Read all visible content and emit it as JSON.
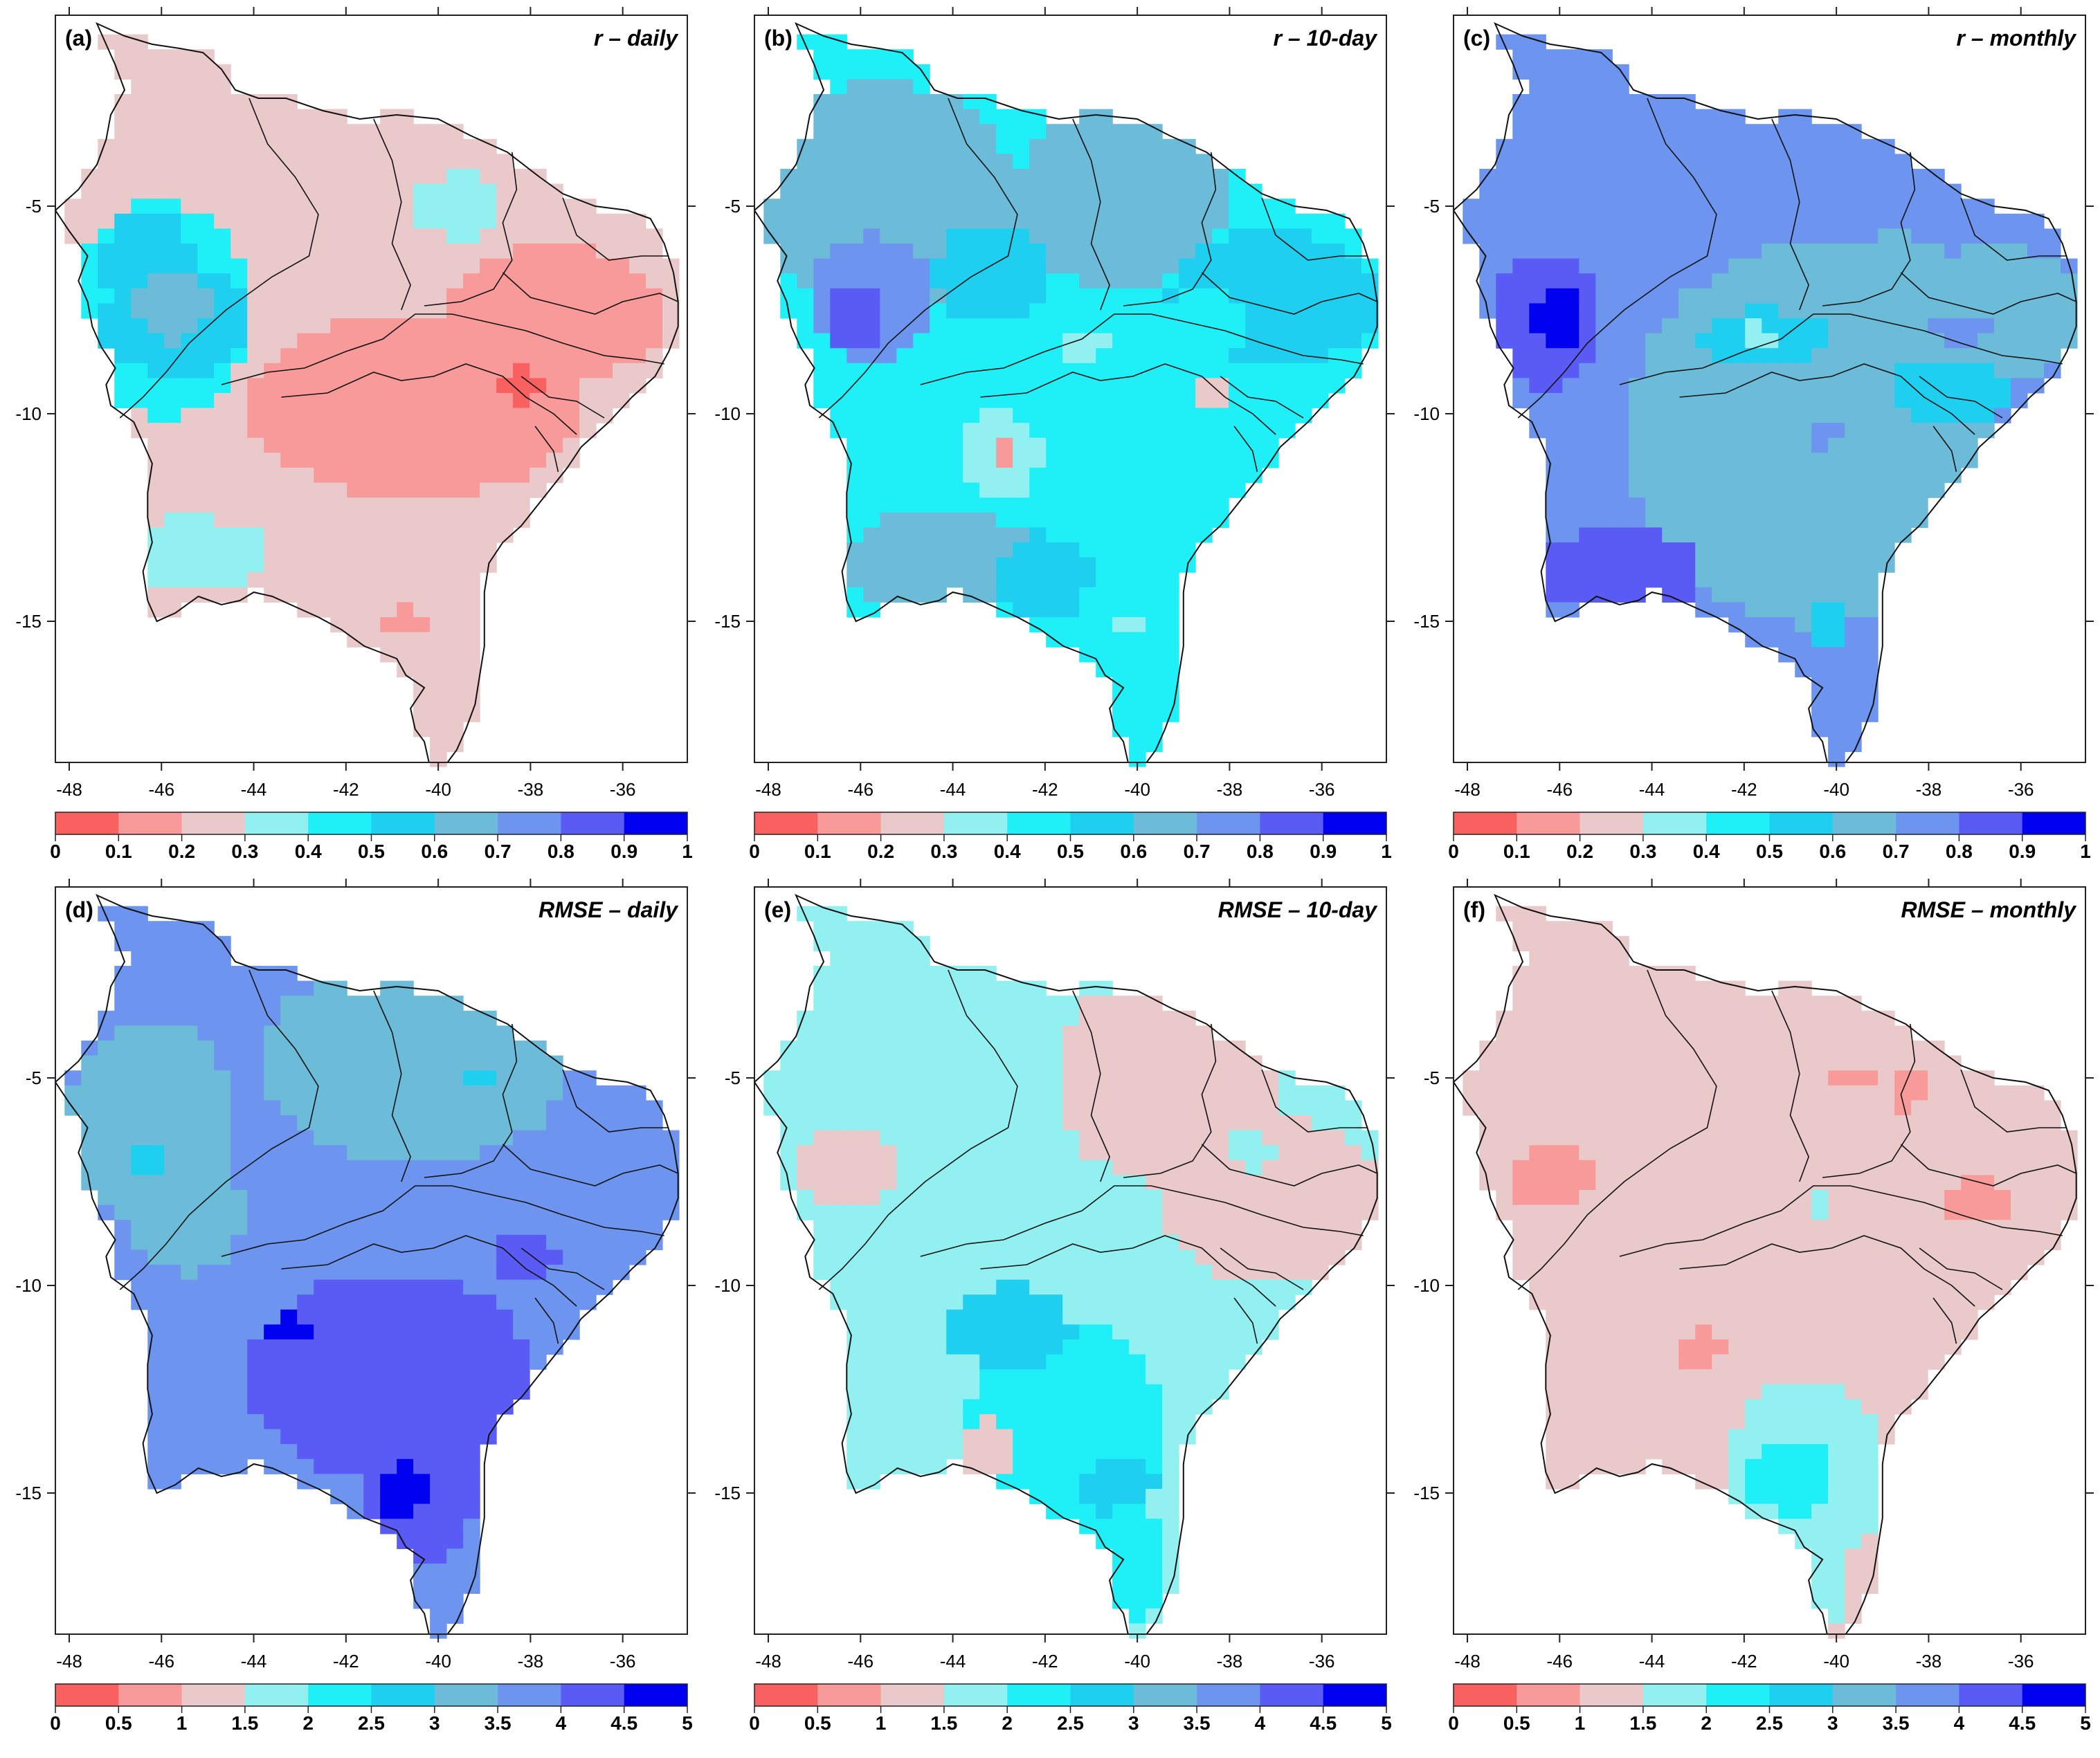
{
  "panels": [
    {
      "id": "a",
      "label": "(a)",
      "title": "r – daily",
      "metric": "r",
      "colorbar": "r",
      "base": 2,
      "blobs": [
        {
          "cx": -46.0,
          "cy": -7.5,
          "rx": 1.9,
          "ry": 2.6,
          "c": 4
        },
        {
          "cx": -46.3,
          "cy": -6.3,
          "rx": 1.0,
          "ry": 1.3,
          "c": 5
        },
        {
          "cx": -45.7,
          "cy": -7.8,
          "rx": 1.6,
          "ry": 1.3,
          "c": 5
        },
        {
          "cx": -45.8,
          "cy": -7.4,
          "rx": 0.8,
          "ry": 0.9,
          "c": 6
        },
        {
          "cx": -45.3,
          "cy": -13.4,
          "rx": 1.6,
          "ry": 0.9,
          "c": 3
        },
        {
          "cx": -39.6,
          "cy": -5.0,
          "rx": 0.9,
          "ry": 0.8,
          "c": 3
        },
        {
          "cx": -40.5,
          "cy": -9.8,
          "rx": 3.6,
          "ry": 2.2,
          "c": 1
        },
        {
          "cx": -37.5,
          "cy": -7.6,
          "rx": 2.4,
          "ry": 1.6,
          "c": 1
        },
        {
          "cx": -38.2,
          "cy": -9.4,
          "rx": 0.4,
          "ry": 0.5,
          "c": 0
        },
        {
          "cx": -40.7,
          "cy": -15.0,
          "rx": 0.5,
          "ry": 0.3,
          "c": 1
        }
      ]
    },
    {
      "id": "b",
      "label": "(b)",
      "title": "r – 10-day",
      "metric": "r",
      "colorbar": "r",
      "base": 4,
      "blobs": [
        {
          "cx": -45.5,
          "cy": -4.8,
          "rx": 2.8,
          "ry": 2.8,
          "c": 6
        },
        {
          "cx": -40.3,
          "cy": -4.8,
          "rx": 2.3,
          "ry": 2.2,
          "c": 6
        },
        {
          "cx": -45.8,
          "cy": -7.2,
          "rx": 1.3,
          "ry": 1.5,
          "c": 7
        },
        {
          "cx": -46.1,
          "cy": -7.6,
          "rx": 0.7,
          "ry": 0.8,
          "c": 8
        },
        {
          "cx": -43.2,
          "cy": -6.6,
          "rx": 1.2,
          "ry": 1.2,
          "c": 5
        },
        {
          "cx": -37.0,
          "cy": -7.2,
          "rx": 2.3,
          "ry": 1.6,
          "c": 5
        },
        {
          "cx": -38.5,
          "cy": -7.8,
          "rx": 1.0,
          "ry": 0.8,
          "c": 4
        },
        {
          "cx": -44.2,
          "cy": -13.6,
          "rx": 2.2,
          "ry": 1.3,
          "c": 6
        },
        {
          "cx": -42.0,
          "cy": -13.9,
          "rx": 1.0,
          "ry": 1.0,
          "c": 5
        },
        {
          "cx": -43.0,
          "cy": -11.0,
          "rx": 0.9,
          "ry": 1.0,
          "c": 3
        },
        {
          "cx": -42.9,
          "cy": -11.0,
          "rx": 0.35,
          "ry": 0.35,
          "c": 1
        },
        {
          "cx": -41.2,
          "cy": -8.3,
          "rx": 0.5,
          "ry": 0.4,
          "c": 3
        },
        {
          "cx": -38.3,
          "cy": -9.5,
          "rx": 0.4,
          "ry": 0.5,
          "c": 2
        },
        {
          "cx": -40.2,
          "cy": -15.1,
          "rx": 0.5,
          "ry": 0.3,
          "c": 3
        }
      ]
    },
    {
      "id": "c",
      "label": "(c)",
      "title": "r – monthly",
      "metric": "r",
      "colorbar": "r",
      "base": 7,
      "blobs": [
        {
          "cx": -40.5,
          "cy": -10.5,
          "rx": 4.0,
          "ry": 4.6,
          "c": 6
        },
        {
          "cx": -36.6,
          "cy": -7.6,
          "rx": 2.2,
          "ry": 1.6,
          "c": 6
        },
        {
          "cx": -38.8,
          "cy": -6.3,
          "rx": 1.2,
          "ry": 0.6,
          "c": 6
        },
        {
          "cx": -41.6,
          "cy": -8.2,
          "rx": 1.4,
          "ry": 0.7,
          "c": 5
        },
        {
          "cx": -37.5,
          "cy": -9.4,
          "rx": 1.3,
          "ry": 0.8,
          "c": 5
        },
        {
          "cx": -41.7,
          "cy": -8.1,
          "rx": 0.3,
          "ry": 0.3,
          "c": 3
        },
        {
          "cx": -46.3,
          "cy": -7.8,
          "rx": 1.2,
          "ry": 1.6,
          "c": 8
        },
        {
          "cx": -46.0,
          "cy": -7.7,
          "rx": 0.5,
          "ry": 0.7,
          "c": 9
        },
        {
          "cx": -44.7,
          "cy": -13.8,
          "rx": 1.7,
          "ry": 1.1,
          "c": 8
        },
        {
          "cx": -40.2,
          "cy": -15.0,
          "rx": 0.5,
          "ry": 0.6,
          "c": 5
        },
        {
          "cx": -37.3,
          "cy": -8.0,
          "rx": 0.6,
          "ry": 0.3,
          "c": 7
        },
        {
          "cx": -40.3,
          "cy": -10.5,
          "rx": 0.4,
          "ry": 0.3,
          "c": 7
        }
      ]
    },
    {
      "id": "d",
      "label": "(d)",
      "title": "RMSE – daily",
      "metric": "RMSE",
      "colorbar": "rmse",
      "base": 7,
      "blobs": [
        {
          "cx": -40.5,
          "cy": -4.6,
          "rx": 3.4,
          "ry": 2.4,
          "c": 6
        },
        {
          "cx": -46.2,
          "cy": -6.0,
          "rx": 1.8,
          "ry": 2.4,
          "c": 6
        },
        {
          "cx": -45.5,
          "cy": -8.4,
          "rx": 1.3,
          "ry": 1.3,
          "c": 6
        },
        {
          "cx": -46.2,
          "cy": -7.0,
          "rx": 0.4,
          "ry": 0.3,
          "c": 5
        },
        {
          "cx": -39.2,
          "cy": -5.0,
          "rx": 0.3,
          "ry": 0.3,
          "c": 5
        },
        {
          "cx": -41.0,
          "cy": -12.2,
          "rx": 3.1,
          "ry": 2.5,
          "c": 8
        },
        {
          "cx": -40.4,
          "cy": -15.0,
          "rx": 1.2,
          "ry": 1.8,
          "c": 8
        },
        {
          "cx": -38.1,
          "cy": -9.3,
          "rx": 0.7,
          "ry": 0.6,
          "c": 8
        },
        {
          "cx": -40.8,
          "cy": -15.0,
          "rx": 0.5,
          "ry": 0.7,
          "c": 9
        },
        {
          "cx": -43.2,
          "cy": -11.0,
          "rx": 0.5,
          "ry": 0.3,
          "c": 9
        }
      ]
    },
    {
      "id": "e",
      "label": "(e)",
      "title": "RMSE – 10-day",
      "metric": "RMSE",
      "colorbar": "rmse",
      "base": 3,
      "blobs": [
        {
          "cx": -39.3,
          "cy": -5.0,
          "rx": 2.5,
          "ry": 2.6,
          "c": 2
        },
        {
          "cx": -37.0,
          "cy": -8.0,
          "rx": 2.4,
          "ry": 2.0,
          "c": 2
        },
        {
          "cx": -46.3,
          "cy": -7.2,
          "rx": 1.0,
          "ry": 1.0,
          "c": 2
        },
        {
          "cx": -41.6,
          "cy": -13.5,
          "rx": 2.1,
          "ry": 2.7,
          "c": 4
        },
        {
          "cx": -42.8,
          "cy": -11.0,
          "rx": 1.4,
          "ry": 1.0,
          "c": 5
        },
        {
          "cx": -40.4,
          "cy": -14.8,
          "rx": 0.8,
          "ry": 0.7,
          "c": 5
        },
        {
          "cx": -40.2,
          "cy": -16.7,
          "rx": 0.7,
          "ry": 1.5,
          "c": 4
        },
        {
          "cx": -43.3,
          "cy": -13.9,
          "rx": 0.6,
          "ry": 0.7,
          "c": 2
        },
        {
          "cx": -37.6,
          "cy": -6.7,
          "rx": 0.5,
          "ry": 0.5,
          "c": 3
        }
      ]
    },
    {
      "id": "f",
      "label": "(f)",
      "title": "RMSE – monthly",
      "metric": "RMSE",
      "colorbar": "rmse",
      "base": 2,
      "blobs": [
        {
          "cx": -46.2,
          "cy": -7.4,
          "rx": 1.0,
          "ry": 0.7,
          "c": 1
        },
        {
          "cx": -43.0,
          "cy": -11.6,
          "rx": 0.5,
          "ry": 0.5,
          "c": 1
        },
        {
          "cx": -36.9,
          "cy": -8.0,
          "rx": 0.8,
          "ry": 0.6,
          "c": 1
        },
        {
          "cx": -39.6,
          "cy": -5.0,
          "rx": 0.5,
          "ry": 0.3,
          "c": 1
        },
        {
          "cx": -38.4,
          "cy": -5.3,
          "rx": 0.3,
          "ry": 0.5,
          "c": 1
        },
        {
          "cx": -40.6,
          "cy": -14.5,
          "rx": 1.7,
          "ry": 2.3,
          "c": 3
        },
        {
          "cx": -40.3,
          "cy": -17.0,
          "rx": 0.6,
          "ry": 1.2,
          "c": 3
        },
        {
          "cx": -41.0,
          "cy": -14.6,
          "rx": 1.0,
          "ry": 0.9,
          "c": 4
        },
        {
          "cx": -40.3,
          "cy": -8.0,
          "rx": 0.3,
          "ry": 0.3,
          "c": 3
        }
      ]
    }
  ],
  "axes": {
    "x_ticks": [
      "-48",
      "-46",
      "-44",
      "-42",
      "-40",
      "-38",
      "-36"
    ],
    "y_ticks": [
      "-5",
      "-10",
      "-15"
    ],
    "x_tick_values": [
      -48,
      -46,
      -44,
      -42,
      -40,
      -38,
      -36
    ],
    "y_tick_values": [
      -5,
      -10,
      -15
    ],
    "lon_range": [
      -48.3,
      -34.6
    ],
    "lat_range": [
      -18.4,
      -0.4
    ]
  },
  "colorbars": {
    "r": {
      "labels": [
        "0",
        "0.1",
        "0.2",
        "0.3",
        "0.4",
        "0.5",
        "0.6",
        "0.7",
        "0.8",
        "0.9",
        "1"
      ]
    },
    "rmse": {
      "labels": [
        "0",
        "0.5",
        "1",
        "1.5",
        "2",
        "2.5",
        "3",
        "3.5",
        "4",
        "4.5",
        "5"
      ]
    }
  },
  "palette": [
    "#f96060",
    "#f99a9a",
    "#e9c9c9",
    "#93f0f0",
    "#1ff0f8",
    "#1ecfef",
    "#6cbcd9",
    "#6d95f0",
    "#5a5af5",
    "#0000f0"
  ],
  "colors": {
    "border": "#111111",
    "axis": "#222222",
    "background": "#ffffff"
  }
}
